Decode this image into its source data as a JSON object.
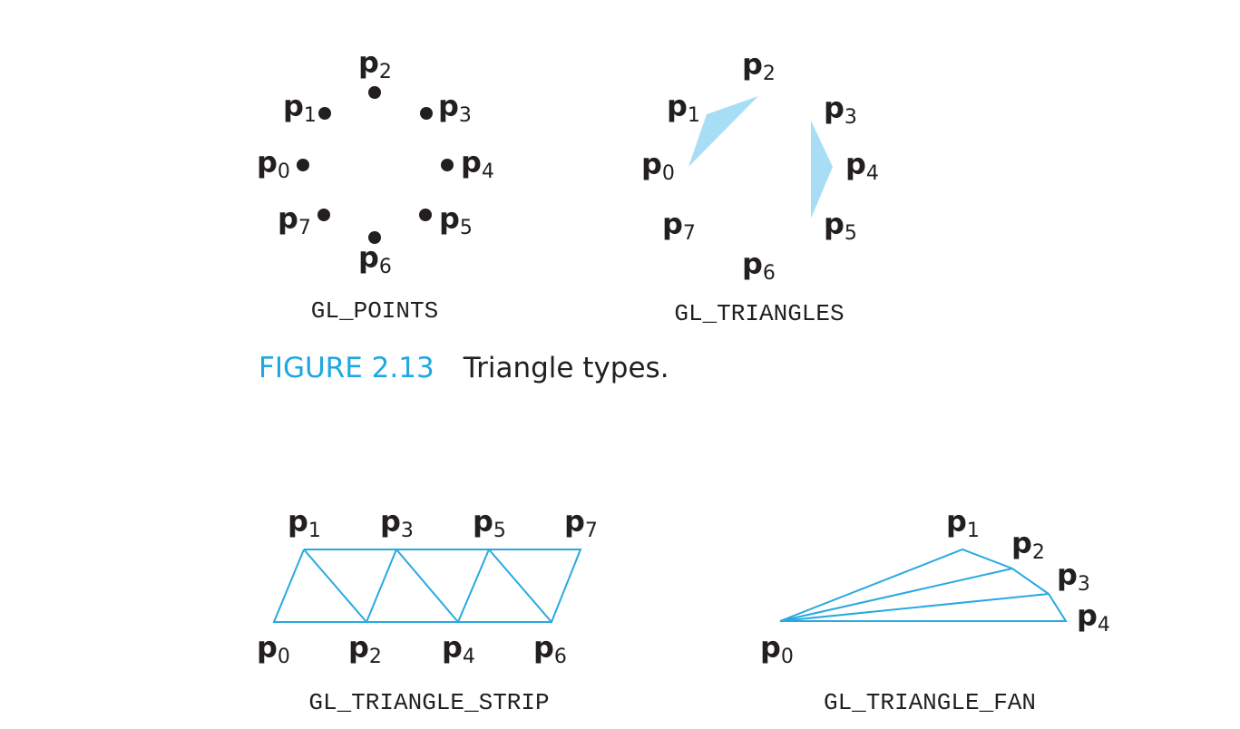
{
  "figure": {
    "number": "FIGURE 2.13",
    "caption": "Triangle types."
  },
  "panels": {
    "points": {
      "caption": "GL_POINTS",
      "vertices": [
        {
          "base": "p",
          "sub": "0"
        },
        {
          "base": "p",
          "sub": "1"
        },
        {
          "base": "p",
          "sub": "2"
        },
        {
          "base": "p",
          "sub": "3"
        },
        {
          "base": "p",
          "sub": "4"
        },
        {
          "base": "p",
          "sub": "5"
        },
        {
          "base": "p",
          "sub": "6"
        },
        {
          "base": "p",
          "sub": "7"
        }
      ]
    },
    "triangles": {
      "caption": "GL_TRIANGLES",
      "vertices": [
        {
          "base": "p",
          "sub": "0"
        },
        {
          "base": "p",
          "sub": "1"
        },
        {
          "base": "p",
          "sub": "2"
        },
        {
          "base": "p",
          "sub": "3"
        },
        {
          "base": "p",
          "sub": "4"
        },
        {
          "base": "p",
          "sub": "5"
        },
        {
          "base": "p",
          "sub": "6"
        },
        {
          "base": "p",
          "sub": "7"
        }
      ]
    },
    "strip": {
      "caption": "GL_TRIANGLE_STRIP",
      "vertices": [
        {
          "base": "p",
          "sub": "0"
        },
        {
          "base": "p",
          "sub": "1"
        },
        {
          "base": "p",
          "sub": "2"
        },
        {
          "base": "p",
          "sub": "3"
        },
        {
          "base": "p",
          "sub": "4"
        },
        {
          "base": "p",
          "sub": "5"
        },
        {
          "base": "p",
          "sub": "6"
        },
        {
          "base": "p",
          "sub": "7"
        }
      ]
    },
    "fan": {
      "caption": "GL_TRIANGLE_FAN",
      "vertices": [
        {
          "base": "p",
          "sub": "0"
        },
        {
          "base": "p",
          "sub": "1"
        },
        {
          "base": "p",
          "sub": "2"
        },
        {
          "base": "p",
          "sub": "3"
        },
        {
          "base": "p",
          "sub": "4"
        }
      ]
    }
  },
  "colors": {
    "accent": "#1fa7e1",
    "edge": "#29a9e0",
    "fill": "#a8def5",
    "ink": "#231f20"
  }
}
